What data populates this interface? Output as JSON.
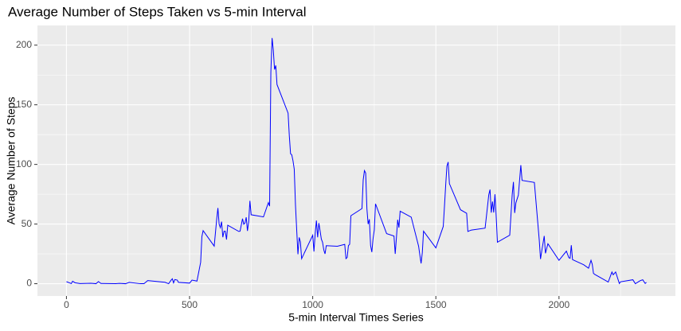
{
  "chart_data": {
    "type": "line",
    "title": "Average Number of Steps Taken vs 5-min Interval",
    "x_label": "5-min Interval Times Series",
    "y_label": "Average Number of Steps",
    "x": [
      0,
      20,
      25,
      35,
      50,
      55,
      100,
      120,
      130,
      140,
      200,
      215,
      240,
      255,
      300,
      315,
      330,
      400,
      415,
      425,
      430,
      435,
      440,
      450,
      455,
      500,
      510,
      530,
      545,
      550,
      555,
      600,
      610,
      615,
      620,
      625,
      630,
      635,
      640,
      645,
      650,
      655,
      700,
      705,
      715,
      720,
      725,
      730,
      735,
      740,
      745,
      750,
      800,
      820,
      825,
      830,
      835,
      840,
      845,
      850,
      855,
      900,
      905,
      910,
      915,
      920,
      925,
      930,
      935,
      940,
      945,
      950,
      955,
      1000,
      1005,
      1010,
      1015,
      1020,
      1025,
      1030,
      1035,
      1040,
      1045,
      1050,
      1055,
      1100,
      1130,
      1135,
      1140,
      1145,
      1150,
      1155,
      1200,
      1205,
      1210,
      1215,
      1220,
      1225,
      1230,
      1235,
      1240,
      1245,
      1250,
      1255,
      1300,
      1330,
      1335,
      1340,
      1345,
      1350,
      1355,
      1400,
      1430,
      1435,
      1440,
      1445,
      1450,
      1500,
      1530,
      1535,
      1540,
      1545,
      1550,
      1555,
      1600,
      1625,
      1630,
      1640,
      1645,
      1700,
      1715,
      1720,
      1725,
      1730,
      1735,
      1740,
      1745,
      1750,
      1800,
      1810,
      1815,
      1820,
      1825,
      1835,
      1845,
      1850,
      1900,
      1920,
      1925,
      1930,
      1940,
      1945,
      1955,
      2000,
      2030,
      2040,
      2045,
      2050,
      2055,
      2100,
      2120,
      2130,
      2135,
      2140,
      2145,
      2200,
      2215,
      2220,
      2230,
      2245,
      2250,
      2300,
      2310,
      2330,
      2340,
      2350,
      2355
    ],
    "series": [
      {
        "name": "steps",
        "color": "#0000ff",
        "values": [
          1.7,
          0.1,
          2.1,
          0.8,
          0.3,
          0.1,
          0.4,
          0,
          1.8,
          0.2,
          0,
          0.3,
          0,
          1.1,
          0,
          0,
          2.6,
          1.2,
          0,
          3,
          4.1,
          0.7,
          3.5,
          3,
          1.1,
          0.5,
          3,
          2.2,
          18,
          39.5,
          44.5,
          31.5,
          53.8,
          63.5,
          50,
          47,
          52,
          39,
          44,
          44,
          37,
          49,
          43.8,
          44,
          54.5,
          49.9,
          50.9,
          55.7,
          44.3,
          52,
          69.5,
          57.8,
          56,
          68,
          65,
          177,
          206,
          195.9,
          179.6,
          183,
          167,
          143,
          124,
          109,
          108,
          103,
          96,
          66,
          45,
          24.7,
          38.8,
          35,
          21,
          40.6,
          27,
          42,
          53,
          38.9,
          50.8,
          44.3,
          37.4,
          34.7,
          28.3,
          25,
          31.9,
          31.4,
          33,
          21,
          22,
          32,
          33,
          57,
          63,
          87,
          94.8,
          92.8,
          63,
          50,
          54,
          32,
          26.5,
          37.7,
          45,
          67,
          42,
          40,
          25,
          39,
          53.6,
          47,
          60.8,
          55.8,
          31.4,
          24,
          17,
          26,
          44,
          30,
          48,
          65,
          82.9,
          98.7,
          102,
          83.9,
          62,
          59,
          43.8,
          44.7,
          45,
          46.6,
          74.7,
          78.9,
          59.6,
          68.9,
          59.7,
          75,
          56.5,
          34.8,
          40.7,
          74.7,
          85.3,
          59.3,
          67.8,
          74.2,
          99.4,
          86.6,
          84.9,
          36.1,
          20.7,
          27.4,
          40,
          25.5,
          33.5,
          19.6,
          27.3,
          21.8,
          21.3,
          32.3,
          20.2,
          15.9,
          13,
          19.6,
          16.3,
          8.7,
          7.8,
          1.4,
          9.8,
          7.5,
          9.8,
          0.2,
          1.6,
          3.3,
          0,
          2.6,
          3.3,
          0.2,
          1.1
        ]
      }
    ],
    "xlim": [
      -117.75,
      2472.75
    ],
    "ylim": [
      -10.3,
      216.5
    ],
    "xticks": [
      0,
      500,
      1000,
      1500,
      2000
    ],
    "yticks": [
      0,
      50,
      100,
      150,
      200
    ],
    "x_minor_ticks": [
      250,
      750,
      1250,
      1750,
      2250
    ],
    "y_minor_ticks": [
      25,
      75,
      125,
      175
    ],
    "grid": true
  }
}
